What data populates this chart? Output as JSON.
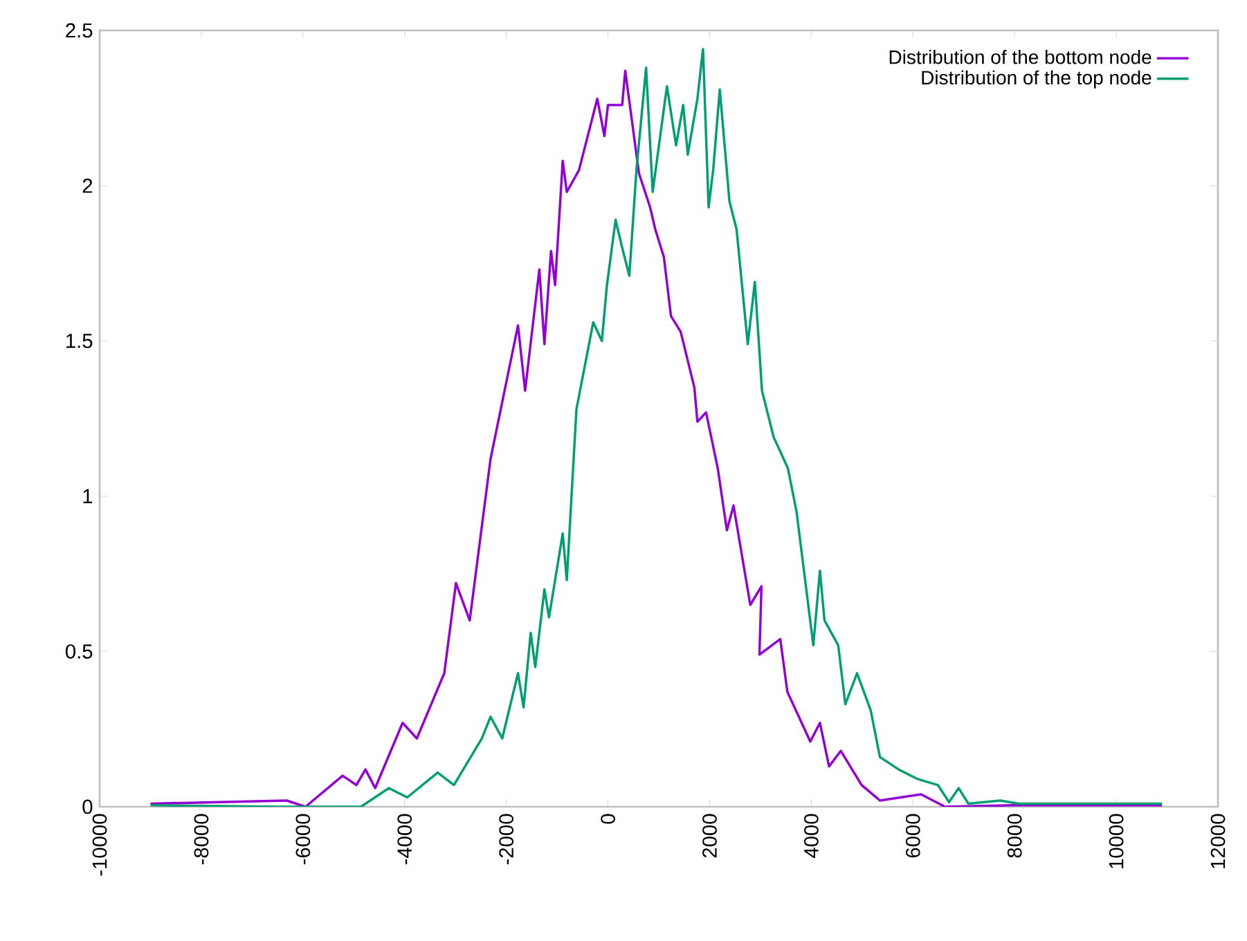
{
  "chart_data": {
    "type": "line",
    "xlim": [
      -10000,
      12000
    ],
    "ylim": [
      0,
      2.5
    ],
    "xticks": [
      -10000,
      -8000,
      -6000,
      -4000,
      -2000,
      0,
      2000,
      4000,
      6000,
      8000,
      10000,
      12000
    ],
    "yticks": [
      0,
      0.5,
      1,
      1.5,
      2,
      2.5
    ],
    "legend": "top right",
    "series": [
      {
        "name": "Distribution of the bottom node",
        "color": "#9400d3",
        "x": [
          -9000,
          -6320,
          -5950,
          -5220,
          -4950,
          -4770,
          -4580,
          -4040,
          -3760,
          -3220,
          -2990,
          -2720,
          -2310,
          -1770,
          -1630,
          -1350,
          -1250,
          -1120,
          -1040,
          -890,
          -810,
          -570,
          -210,
          -70,
          0,
          280,
          340,
          610,
          830,
          930,
          1100,
          1240,
          1430,
          1700,
          1760,
          1930,
          2160,
          2340,
          2470,
          2800,
          3020,
          2980,
          3390,
          3530,
          3980,
          4170,
          4350,
          4580,
          4990,
          5350,
          6160,
          6630,
          8000,
          10900
        ],
        "values": [
          0.01,
          0.02,
          0,
          0.1,
          0.07,
          0.12,
          0.06,
          0.27,
          0.22,
          0.43,
          0.72,
          0.6,
          1.12,
          1.55,
          1.34,
          1.73,
          1.49,
          1.79,
          1.68,
          2.08,
          1.98,
          2.05,
          2.28,
          2.16,
          2.26,
          2.26,
          2.37,
          2.04,
          1.93,
          1.86,
          1.77,
          1.58,
          1.53,
          1.35,
          1.24,
          1.27,
          1.09,
          0.89,
          0.97,
          0.65,
          0.71,
          0.49,
          0.54,
          0.37,
          0.21,
          0.27,
          0.13,
          0.18,
          0.07,
          0.02,
          0.04,
          0,
          0.005,
          0.005
        ]
      },
      {
        "name": "Distribution of the top node",
        "color": "#009e73",
        "x": [
          -9000,
          -6500,
          -4860,
          -4310,
          -3950,
          -3350,
          -3030,
          -2480,
          -2310,
          -2080,
          -1770,
          -1660,
          -1520,
          -1430,
          -1250,
          -1160,
          -890,
          -810,
          -620,
          -290,
          -120,
          -20,
          150,
          280,
          420,
          560,
          750,
          880,
          1160,
          1340,
          1480,
          1570,
          1760,
          1870,
          1980,
          2070,
          2200,
          2390,
          2530,
          2750,
          2890,
          3030,
          3260,
          3540,
          3710,
          4040,
          4170,
          4260,
          4530,
          4670,
          4900,
          5170,
          5350,
          5720,
          6080,
          6490,
          6710,
          6900,
          7090,
          7720,
          8080,
          10900
        ],
        "values": [
          0.005,
          0,
          0,
          0.06,
          0.03,
          0.11,
          0.07,
          0.22,
          0.29,
          0.22,
          0.43,
          0.32,
          0.56,
          0.45,
          0.7,
          0.61,
          0.88,
          0.73,
          1.28,
          1.56,
          1.5,
          1.68,
          1.89,
          1.8,
          1.71,
          2.05,
          2.38,
          1.98,
          2.32,
          2.13,
          2.26,
          2.1,
          2.28,
          2.44,
          1.93,
          2.05,
          2.31,
          1.95,
          1.86,
          1.49,
          1.69,
          1.34,
          1.19,
          1.09,
          0.95,
          0.52,
          0.76,
          0.6,
          0.52,
          0.33,
          0.43,
          0.31,
          0.16,
          0.12,
          0.09,
          0.07,
          0.015,
          0.06,
          0.01,
          0.02,
          0.01,
          0.01
        ]
      }
    ]
  }
}
